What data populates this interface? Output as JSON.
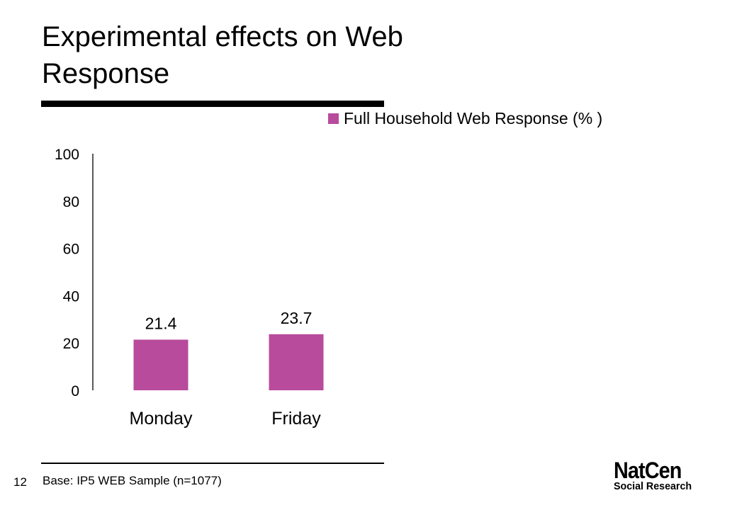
{
  "slide": {
    "title": "Experimental effects on Web Response",
    "page_number": "12",
    "base_note": "Base: IP5 WEB Sample (n=1077)"
  },
  "logo": {
    "line1": "NatCen",
    "line2": "Social Research"
  },
  "colors": {
    "bar": "#b84b9c",
    "text": "#000000",
    "rule": "#000000"
  },
  "chart_data": {
    "type": "bar",
    "categories": [
      "Monday",
      "Friday"
    ],
    "series": [
      {
        "name": "Full Household Web Response (% )",
        "values": [
          21.4,
          23.7
        ]
      }
    ],
    "data_labels": [
      "21.4",
      "23.7"
    ],
    "yticks": [
      0,
      20,
      40,
      60,
      80,
      100
    ],
    "ylim": [
      0,
      100
    ],
    "xlabel": "",
    "ylabel": "",
    "grid": false,
    "legend_position": "top-right"
  }
}
